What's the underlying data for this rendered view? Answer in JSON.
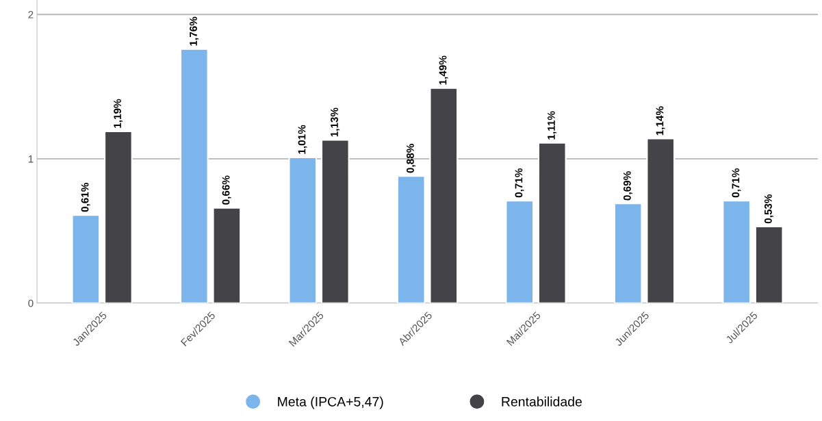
{
  "chart_data": {
    "type": "bar",
    "categories": [
      "Jan/2025",
      "Fev/2025",
      "Mar/2025",
      "Abr/2025",
      "Mai/2025",
      "Jun/2025",
      "Jul/2025"
    ],
    "series": [
      {
        "name": "Meta (IPCA+5,47)",
        "color": "#7cb5ec",
        "values": [
          0.61,
          1.76,
          1.01,
          0.88,
          0.71,
          0.69,
          0.71
        ],
        "value_labels": [
          "0,61%",
          "1,76%",
          "1,01%",
          "0,88%",
          "0,71%",
          "0,69%",
          "0,71%"
        ]
      },
      {
        "name": "Rentabilidade",
        "color": "#434348",
        "values": [
          1.19,
          0.66,
          1.13,
          1.49,
          1.11,
          1.14,
          0.53
        ],
        "value_labels": [
          "1,19%",
          "0,66%",
          "1,13%",
          "1,49%",
          "1,11%",
          "1,14%",
          "0,53%"
        ]
      }
    ],
    "ylim": [
      0,
      2.1
    ],
    "yticks": [
      0,
      1,
      2
    ],
    "grid": "y",
    "legend": "bottom"
  }
}
